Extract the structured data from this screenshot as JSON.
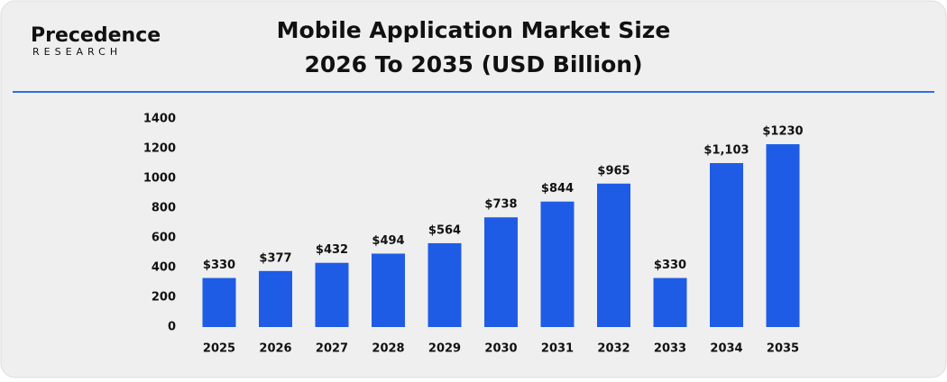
{
  "logo": {
    "name": "Precedence",
    "tagline": "RESEARCH"
  },
  "chart_data": {
    "type": "bar",
    "title": "Mobile Application Market Size",
    "subtitle": "2026 To 2035 (USD Billion)",
    "categories": [
      "2025",
      "2026",
      "2027",
      "2028",
      "2029",
      "2030",
      "2031",
      "2032",
      "2033",
      "2034",
      "2035"
    ],
    "values": [
      330,
      377,
      432,
      494,
      564,
      738,
      844,
      965,
      330,
      1103,
      1230
    ],
    "value_labels": [
      "$330",
      "$377",
      "$432",
      "$494",
      "$564",
      "$738",
      "$844",
      "$965",
      "$330",
      "$1,103",
      "$1230"
    ],
    "color": "#1f5ce6",
    "ylim": [
      0,
      1400
    ],
    "yticks": [
      0,
      200,
      400,
      600,
      800,
      1000,
      1200,
      1400
    ],
    "grid": false
  }
}
